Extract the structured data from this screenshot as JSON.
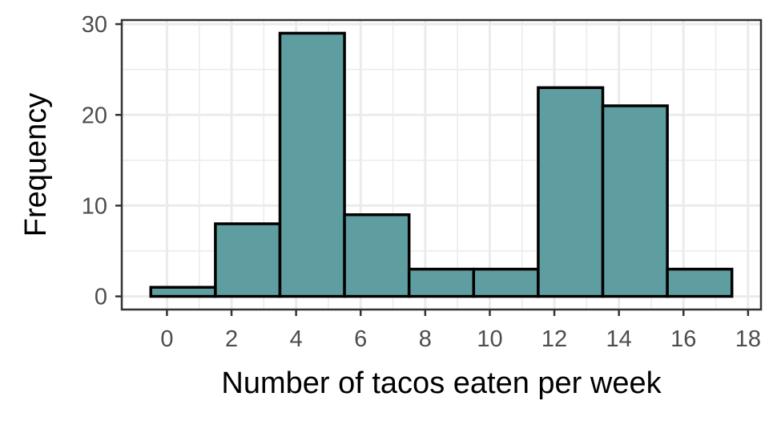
{
  "chart_data": {
    "type": "bar",
    "title": "",
    "xlabel": "Number of tacos eaten per week",
    "ylabel": "Frequency",
    "bins": [
      {
        "x_start": -0.5,
        "x_end": 1.5,
        "value": 1
      },
      {
        "x_start": 1.5,
        "x_end": 3.5,
        "value": 8
      },
      {
        "x_start": 3.5,
        "x_end": 5.5,
        "value": 29
      },
      {
        "x_start": 5.5,
        "x_end": 7.5,
        "value": 9
      },
      {
        "x_start": 7.5,
        "x_end": 9.5,
        "value": 3
      },
      {
        "x_start": 9.5,
        "x_end": 11.5,
        "value": 3
      },
      {
        "x_start": 11.5,
        "x_end": 13.5,
        "value": 23
      },
      {
        "x_start": 13.5,
        "x_end": 15.5,
        "value": 21
      },
      {
        "x_start": 15.5,
        "x_end": 17.5,
        "value": 3
      }
    ],
    "xlim": [
      -1.4,
      18.4
    ],
    "ylim": [
      -1.45,
      30.45
    ],
    "x_ticks": [
      0,
      2,
      4,
      6,
      8,
      10,
      12,
      14,
      16,
      18
    ],
    "y_ticks": [
      0,
      10,
      20,
      30
    ],
    "grid": true,
    "bar_fill": "#5f9ea0",
    "bar_stroke": "#000000",
    "grid_color": "#ebebeb",
    "panel_border_color": "#333333"
  }
}
